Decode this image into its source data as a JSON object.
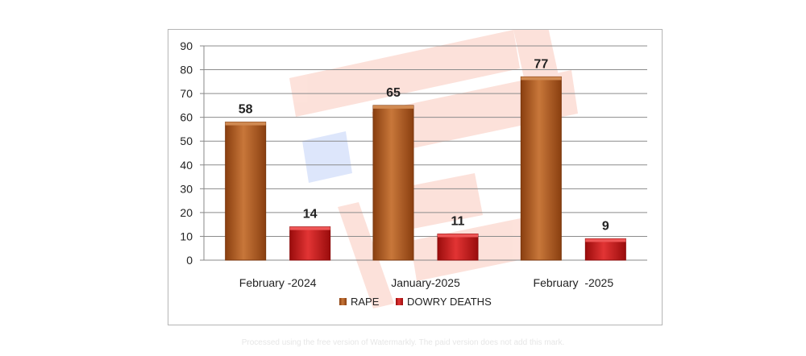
{
  "chart_data": {
    "type": "bar",
    "categories": [
      "February -2024",
      "January-2025",
      "February  -2025"
    ],
    "series": [
      {
        "name": "RAPE",
        "values": [
          58,
          65,
          77
        ],
        "color": "#b05a1e"
      },
      {
        "name": "DOWRY DEATHS",
        "values": [
          14,
          11,
          9
        ],
        "color": "#c81414"
      }
    ],
    "ylim": [
      0,
      90
    ],
    "yticks": [
      0,
      10,
      20,
      30,
      40,
      50,
      60,
      70,
      80,
      90
    ],
    "grid": true,
    "legend_position": "bottom",
    "title": "",
    "xlabel": "",
    "ylabel": ""
  },
  "watermark": {
    "text": "Processed using the free version of Watermarkly. The paid version does not add this mark."
  }
}
